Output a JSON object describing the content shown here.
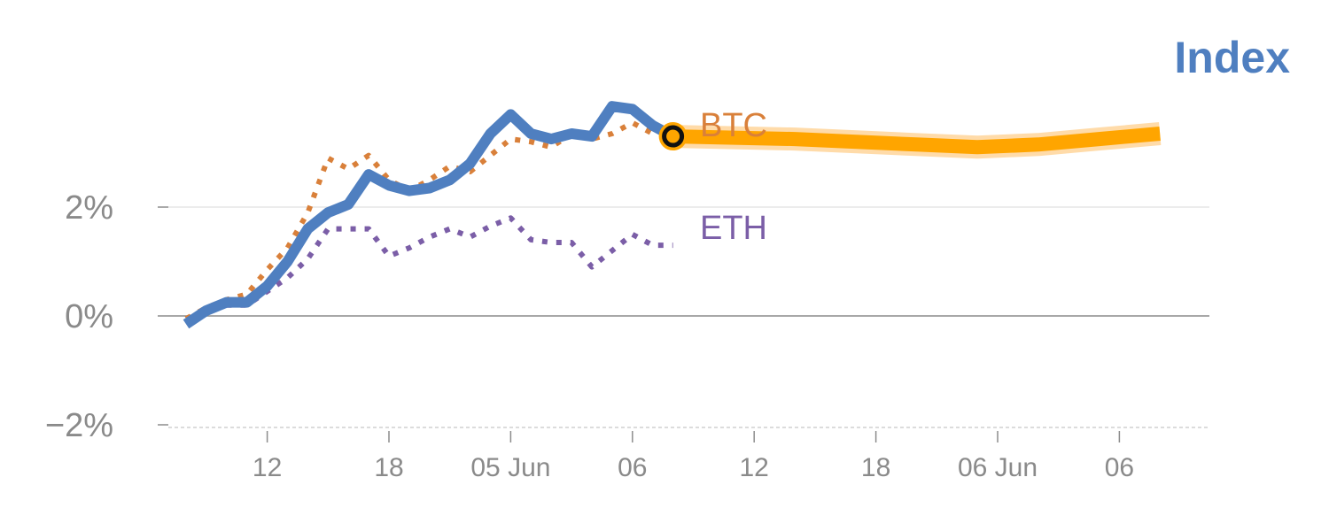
{
  "chart_data": {
    "type": "line",
    "title": "Index",
    "xlabel": "",
    "ylabel": "",
    "y_unit": "%",
    "ylim": [
      -2,
      4
    ],
    "y_ticks": [
      -2,
      0,
      2
    ],
    "y_tick_labels": [
      "−2%",
      "0%",
      "2%"
    ],
    "x_tick_labels": [
      "12",
      "18",
      "05 Jun",
      "06",
      "12",
      "18",
      "06 Jun",
      "06"
    ],
    "x_tick_positions": [
      4,
      10,
      16,
      22,
      28,
      34,
      40,
      46
    ],
    "xlim": [
      -0.4,
      50.5
    ],
    "grid": "horizontal at ticks",
    "series": [
      {
        "name": "",
        "style": "solid",
        "color": "#4f7fc0",
        "x": [
          0,
          1,
          2,
          3,
          4,
          5,
          6,
          7,
          8,
          9,
          10,
          11,
          12,
          13,
          14,
          15,
          16,
          17,
          18,
          19,
          20,
          21,
          22,
          23,
          24
        ],
        "values": [
          -0.15,
          0.1,
          0.25,
          0.25,
          0.55,
          1.0,
          1.6,
          1.9,
          2.05,
          2.6,
          2.4,
          2.3,
          2.35,
          2.5,
          2.8,
          3.35,
          3.7,
          3.35,
          3.25,
          3.35,
          3.3,
          3.85,
          3.8,
          3.5,
          3.3
        ]
      },
      {
        "name": "BTC",
        "style": "dotted",
        "color": "#d9803a",
        "x": [
          0,
          1,
          2,
          3,
          4,
          5,
          6,
          7,
          8,
          9,
          10,
          11,
          12,
          13,
          14,
          15,
          16,
          17,
          18,
          19,
          20,
          21,
          22,
          23
        ],
        "values": [
          -0.05,
          0.15,
          0.3,
          0.4,
          0.85,
          1.25,
          1.9,
          2.9,
          2.7,
          2.95,
          2.5,
          2.3,
          2.5,
          2.75,
          2.65,
          2.95,
          3.25,
          3.2,
          3.1,
          3.35,
          3.25,
          3.35,
          3.55,
          3.35
        ]
      },
      {
        "name": "ETH",
        "style": "dotted",
        "color": "#7b5ea7",
        "x": [
          0,
          1,
          2,
          3,
          4,
          5,
          6,
          7,
          8,
          9,
          10,
          11,
          12,
          13,
          14,
          15,
          16,
          17,
          18,
          19,
          20,
          21,
          22,
          23,
          24
        ],
        "values": [
          -0.05,
          0.1,
          0.2,
          0.2,
          0.45,
          0.7,
          1.05,
          1.6,
          1.6,
          1.6,
          1.1,
          1.25,
          1.45,
          1.6,
          1.45,
          1.65,
          1.8,
          1.4,
          1.35,
          1.35,
          0.9,
          1.2,
          1.5,
          1.3,
          1.3
        ]
      },
      {
        "name": "",
        "style": "thick highlight",
        "color": "#ffa500",
        "x": [
          24,
          30,
          36,
          39,
          42,
          45,
          48
        ],
        "values": [
          3.3,
          3.25,
          3.15,
          3.1,
          3.15,
          3.25,
          3.35
        ]
      }
    ],
    "marker": {
      "x": 24,
      "value": 3.3,
      "color": "#ffa500"
    },
    "labels": [
      {
        "text": "BTC",
        "color": "#d9803a"
      },
      {
        "text": "ETH",
        "color": "#7b5ea7"
      }
    ]
  }
}
